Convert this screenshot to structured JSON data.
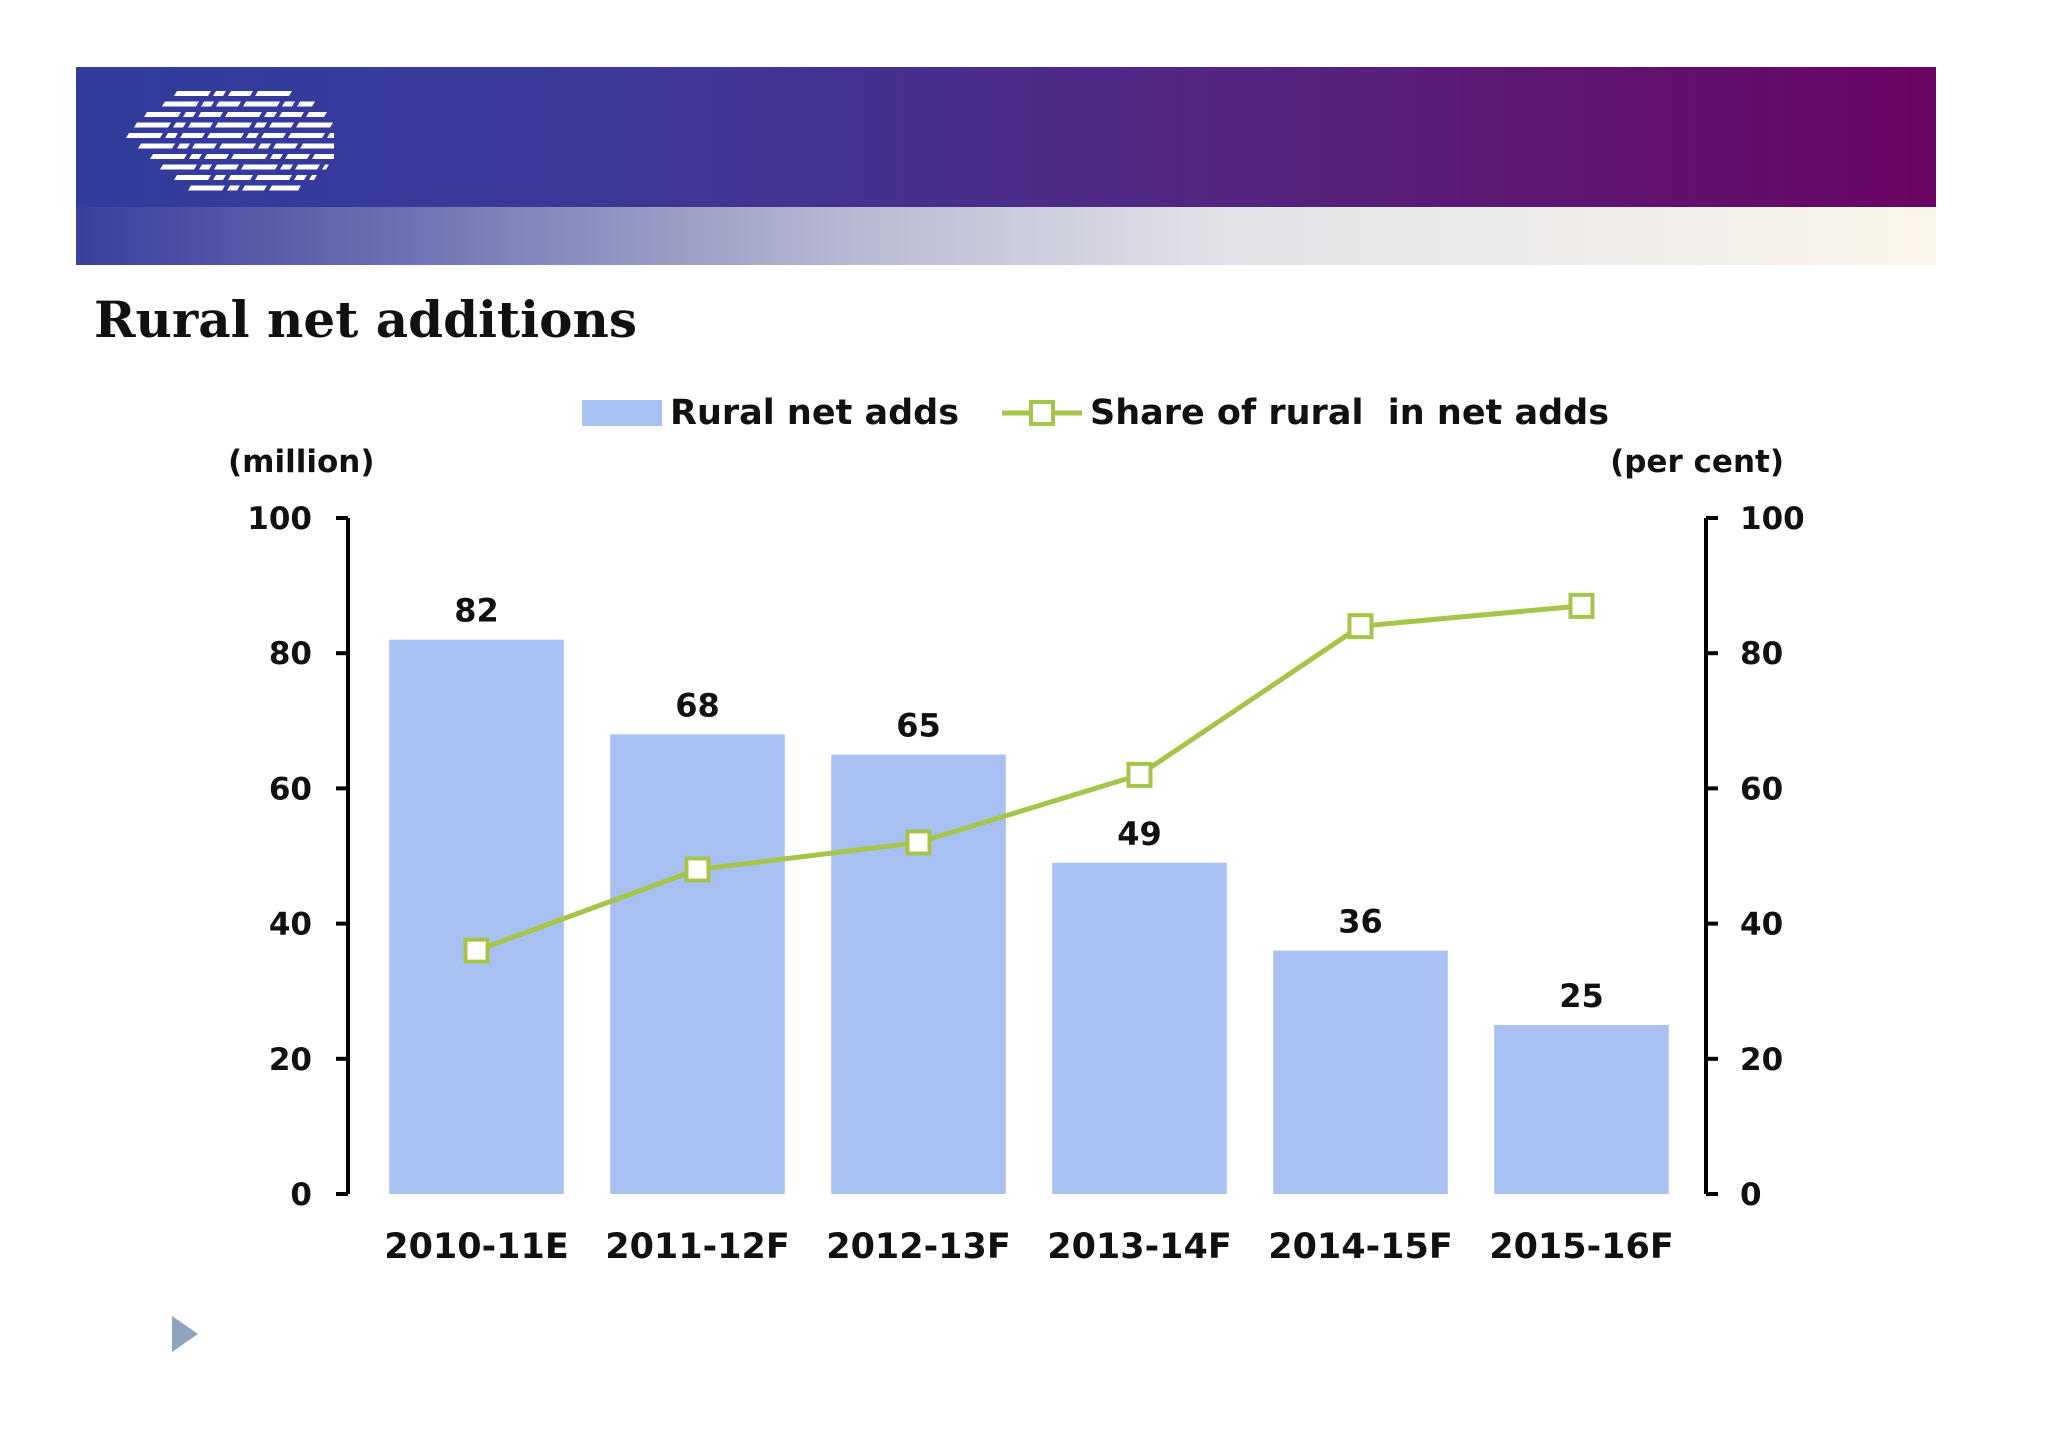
{
  "slide": {
    "title": "Rural net additions"
  },
  "colors": {
    "banner_left": "#2f3c9c",
    "banner_right": "#6b0463",
    "bar": "#a9c1f2",
    "line": "#a6c44a",
    "marker_fill": "#ffffff",
    "bullet": "#8fa4bd"
  },
  "icons": {
    "logo": "striped-logo-icon",
    "bullet": "triangle-bullet-icon"
  },
  "chart_data": {
    "type": "bar",
    "categories": [
      "2010-11E",
      "2011-12F",
      "2012-13F",
      "2013-14F",
      "2014-15F",
      "2015-16F"
    ],
    "series": [
      {
        "name": "Rural net adds",
        "type": "bar",
        "axis": "left",
        "values": [
          82,
          68,
          65,
          49,
          36,
          25
        ]
      },
      {
        "name": "Share of rural  in net adds",
        "type": "line",
        "axis": "right",
        "values": [
          36,
          48,
          52,
          62,
          84,
          87
        ]
      }
    ],
    "data_labels": [
      "82",
      "68",
      "65",
      "49",
      "36",
      "25"
    ],
    "left_axis": {
      "unit": "(million)",
      "ylim": [
        0,
        100
      ],
      "ticks": [
        0,
        20,
        40,
        60,
        80,
        100
      ]
    },
    "right_axis": {
      "unit": "(per cent)",
      "ylim": [
        0,
        100
      ],
      "ticks": [
        0,
        20,
        40,
        60,
        80,
        100
      ]
    },
    "grid": false,
    "legend_position": "top-center"
  }
}
